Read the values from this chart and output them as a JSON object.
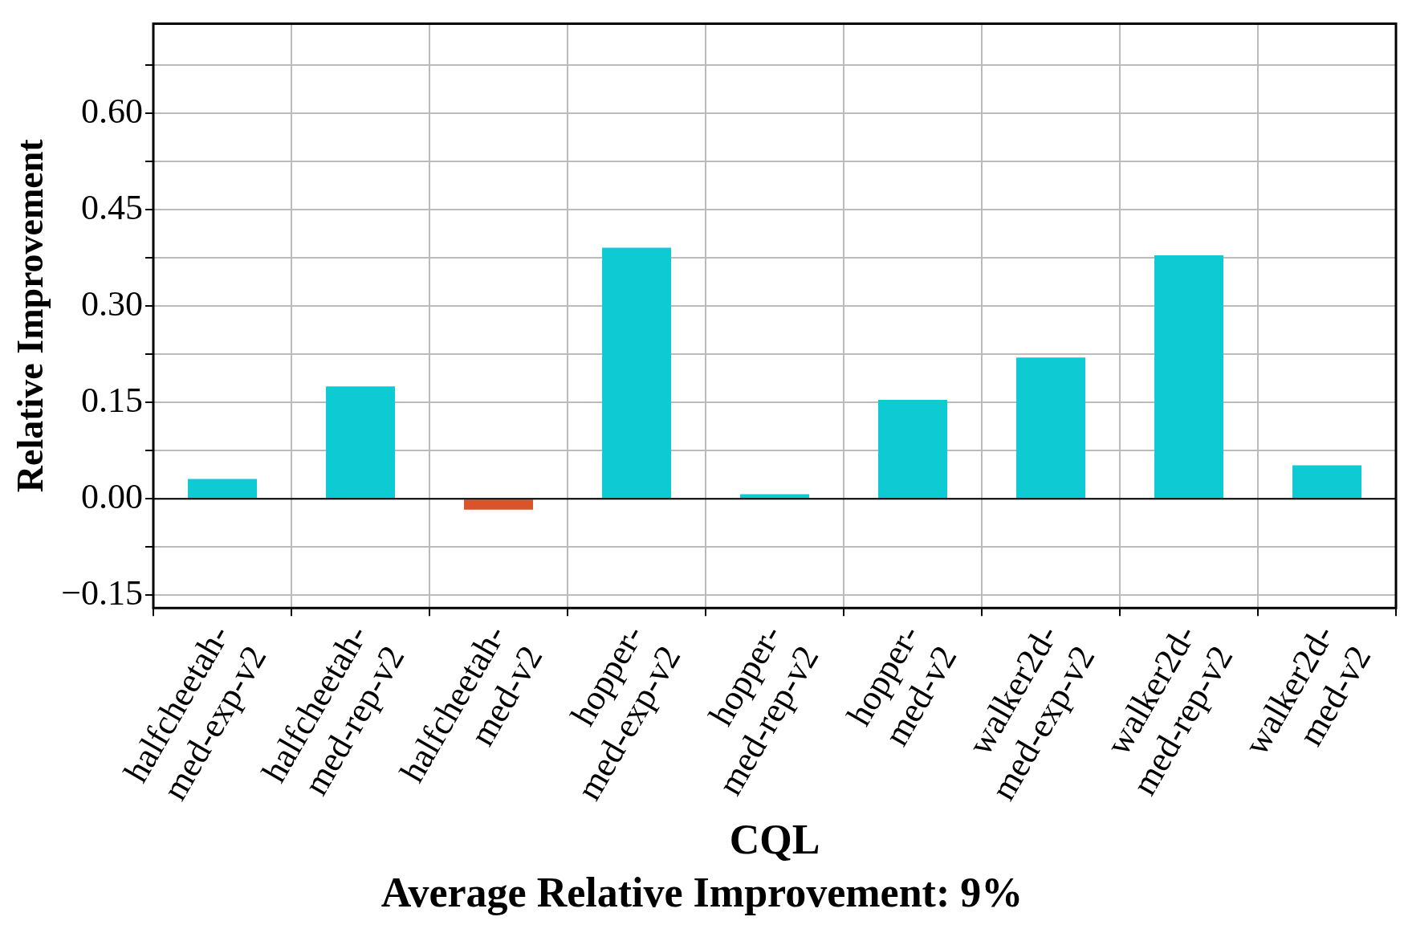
{
  "chart_data": {
    "type": "bar",
    "categories": [
      "halfcheetah-med-exp-v2",
      "halfcheetah-med-rep-v2",
      "halfcheetah-med-v2",
      "hopper-med-exp-v2",
      "hopper-med-rep-v2",
      "hopper-med-v2",
      "walker2d-med-exp-v2",
      "walker2d-med-rep-v2",
      "walker2d-med-v2"
    ],
    "values": [
      0.031,
      0.175,
      -0.017,
      0.391,
      0.007,
      0.154,
      0.22,
      0.379,
      0.052
    ],
    "colors": [
      "#0ecbd3",
      "#0ecbd3",
      "#d9542a",
      "#0ecbd3",
      "#0ecbd3",
      "#0ecbd3",
      "#0ecbd3",
      "#0ecbd3",
      "#0ecbd3"
    ],
    "xlabel": "CQL",
    "ylabel": "Relative Improvement",
    "annotations": [
      "Average Relative Improvement: 9%"
    ],
    "ylim": [
      -0.17,
      0.74
    ],
    "yticks": [
      {
        "value": -0.15,
        "label": "−0.15"
      },
      {
        "value": -0.075,
        "label": null
      },
      {
        "value": 0,
        "label": "0.00"
      },
      {
        "value": 0.075,
        "label": null
      },
      {
        "value": 0.15,
        "label": "0.15"
      },
      {
        "value": 0.225,
        "label": null
      },
      {
        "value": 0.3,
        "label": "0.30"
      },
      {
        "value": 0.375,
        "label": null
      },
      {
        "value": 0.45,
        "label": "0.45"
      },
      {
        "value": 0.525,
        "label": null
      },
      {
        "value": 0.6,
        "label": "0.60"
      },
      {
        "value": 0.675,
        "label": null
      }
    ],
    "ref_lines": [
      {
        "axis": "y",
        "value": 0,
        "color": "#000000"
      }
    ],
    "grid": true,
    "legend": false
  }
}
